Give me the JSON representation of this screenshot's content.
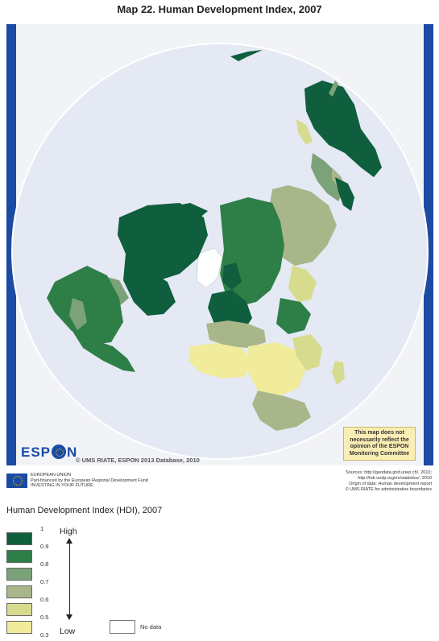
{
  "title": "Map 22. Human Development Index, 2007",
  "colors": {
    "ocean": "#e4e9f4",
    "frame_bar": "#1b4ba3",
    "class_0_9_1": "#0f5e3d",
    "class_0_8_0_9": "#2e7e47",
    "class_0_7_0_8": "#7ca27a",
    "class_0_6_0_7": "#a9b68a",
    "class_0_5_0_6": "#d7db8d",
    "class_0_3_0_5": "#f0ec9c",
    "no_data": "#ffffff"
  },
  "map": {
    "logo": "ESP N",
    "copyright": "© UMS RIATE, ESPON 2013 Database, 2010",
    "disclaimer": "This map does not necessarily reflect the opinion of the ESPON Monitoring Committee"
  },
  "footer": {
    "eu_line1": "EUROPEAN UNION",
    "eu_line2": "Part-financed by the European Regional Development Fund",
    "eu_line3": "INVESTING IN YOUR FUTURE",
    "sources_line1": "Sources: http://geodata.grid.unep.ch/, 2010;",
    "sources_line2": "http://hdr.undp.org/en/statistics/, 2010",
    "sources_line3": "Origin of data: Human development report",
    "sources_line4": "© UMS RIATE for administrative boundaries"
  },
  "legend": {
    "title": "Human Development Index (HDI), 2007",
    "high": "High",
    "low": "Low",
    "ticks": [
      "1",
      "0.9",
      "0.8",
      "0.7",
      "0.6",
      "0.5",
      "0.3"
    ],
    "no_data": "No data",
    "classes": [
      {
        "color": "#0f5e3d"
      },
      {
        "color": "#2e7e47"
      },
      {
        "color": "#7ca27a"
      },
      {
        "color": "#a9b68a"
      },
      {
        "color": "#d7db8d"
      },
      {
        "color": "#f0ec9c"
      }
    ]
  }
}
